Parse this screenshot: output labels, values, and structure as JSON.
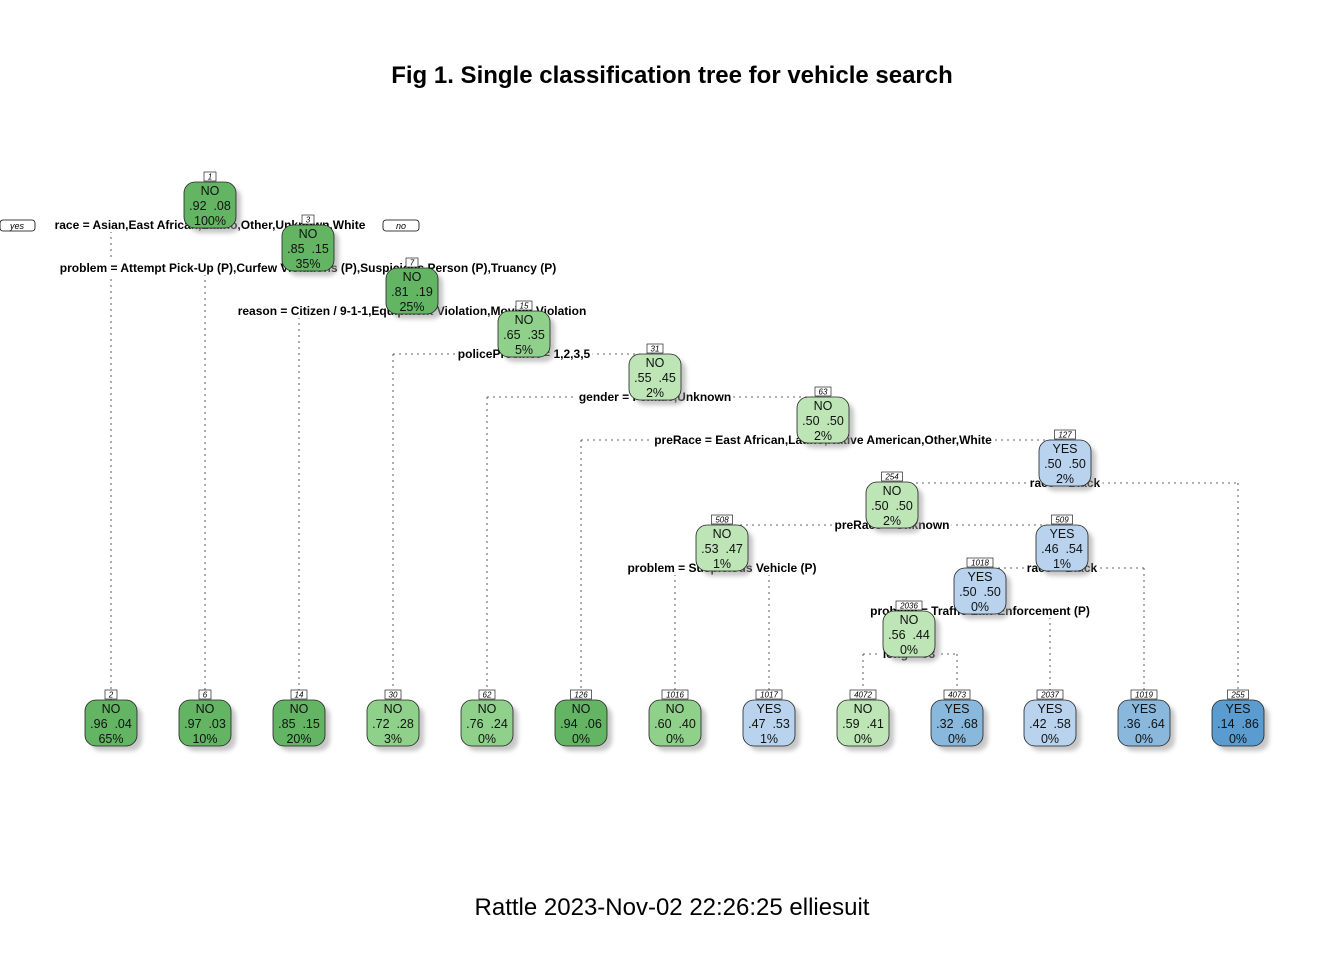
{
  "title": "Fig 1. Single classification tree for vehicle search",
  "footer": "Rattle 2023-Nov-02 22:26:25 elliesuit",
  "branch_labels": {
    "yes": "yes",
    "no": "no"
  },
  "colors": {
    "green_dark": "#63b563",
    "green_mid": "#8fd08a",
    "green_light": "#bde5b5",
    "blue_light": "#b9d3ee",
    "blue_mid": "#89b8dc",
    "blue_dark": "#5a9ccf"
  },
  "nodes": [
    {
      "id": "1",
      "cls": "NO",
      "p": ".92  .08",
      "pct": "100%",
      "color": "green_dark"
    },
    {
      "id": "3",
      "cls": "NO",
      "p": ".85  .15",
      "pct": "35%",
      "color": "green_dark"
    },
    {
      "id": "7",
      "cls": "NO",
      "p": ".81  .19",
      "pct": "25%",
      "color": "green_dark"
    },
    {
      "id": "15",
      "cls": "NO",
      "p": ".65  .35",
      "pct": "5%",
      "color": "green_mid"
    },
    {
      "id": "31",
      "cls": "NO",
      "p": ".55  .45",
      "pct": "2%",
      "color": "green_light"
    },
    {
      "id": "63",
      "cls": "NO",
      "p": ".50  .50",
      "pct": "2%",
      "color": "green_light"
    },
    {
      "id": "127",
      "cls": "YES",
      "p": ".50  .50",
      "pct": "2%",
      "color": "blue_light"
    },
    {
      "id": "254",
      "cls": "NO",
      "p": ".50  .50",
      "pct": "2%",
      "color": "green_light"
    },
    {
      "id": "508",
      "cls": "NO",
      "p": ".53  .47",
      "pct": "1%",
      "color": "green_light"
    },
    {
      "id": "509",
      "cls": "YES",
      "p": ".46  .54",
      "pct": "1%",
      "color": "blue_light"
    },
    {
      "id": "1018",
      "cls": "YES",
      "p": ".50  .50",
      "pct": "0%",
      "color": "blue_light"
    },
    {
      "id": "2036",
      "cls": "NO",
      "p": ".56  .44",
      "pct": "0%",
      "color": "green_light"
    },
    {
      "id": "2",
      "cls": "NO",
      "p": ".96  .04",
      "pct": "65%",
      "color": "green_dark"
    },
    {
      "id": "6",
      "cls": "NO",
      "p": ".97  .03",
      "pct": "10%",
      "color": "green_dark"
    },
    {
      "id": "14",
      "cls": "NO",
      "p": ".85  .15",
      "pct": "20%",
      "color": "green_dark"
    },
    {
      "id": "30",
      "cls": "NO",
      "p": ".72  .28",
      "pct": "3%",
      "color": "green_mid"
    },
    {
      "id": "62",
      "cls": "NO",
      "p": ".76  .24",
      "pct": "0%",
      "color": "green_mid"
    },
    {
      "id": "126",
      "cls": "NO",
      "p": ".94  .06",
      "pct": "0%",
      "color": "green_dark"
    },
    {
      "id": "1016",
      "cls": "NO",
      "p": ".60  .40",
      "pct": "0%",
      "color": "green_mid"
    },
    {
      "id": "1017",
      "cls": "YES",
      "p": ".47  .53",
      "pct": "1%",
      "color": "blue_light"
    },
    {
      "id": "4072",
      "cls": "NO",
      "p": ".59  .41",
      "pct": "0%",
      "color": "green_light"
    },
    {
      "id": "4073",
      "cls": "YES",
      "p": ".32  .68",
      "pct": "0%",
      "color": "blue_mid"
    },
    {
      "id": "2037",
      "cls": "YES",
      "p": ".42  .58",
      "pct": "0%",
      "color": "blue_light"
    },
    {
      "id": "1019",
      "cls": "YES",
      "p": ".36  .64",
      "pct": "0%",
      "color": "blue_mid"
    },
    {
      "id": "255",
      "cls": "YES",
      "p": ".14  .86",
      "pct": "0%",
      "color": "blue_dark"
    }
  ],
  "splits": [
    {
      "node": "1",
      "text": "race = Asian,East African,Latino,Other,Unknown,White"
    },
    {
      "node": "3",
      "text": "problem = Attempt Pick-Up (P),Curfew Violations (P),Suspicious Person (P),Truancy (P)"
    },
    {
      "node": "7",
      "text": "reason = Citizen / 9-1-1,Equipment Violation,Moving Violation"
    },
    {
      "node": "15",
      "text": "policePrecinct = 1,2,3,5"
    },
    {
      "node": "31",
      "text": "gender = Female,Unknown"
    },
    {
      "node": "63",
      "text": "preRace = East African,Latino,Native American,Other,White"
    },
    {
      "node": "127",
      "text": "race = Black"
    },
    {
      "node": "254",
      "text": "preRace = Unknown"
    },
    {
      "node": "508",
      "text": "problem = Suspicious Vehicle (P)"
    },
    {
      "node": "509",
      "text": "race = Black"
    },
    {
      "node": "1018",
      "text": "problem = Traffic Law Enforcement (P)"
    },
    {
      "node": "2036",
      "text": "long < 93"
    }
  ]
}
